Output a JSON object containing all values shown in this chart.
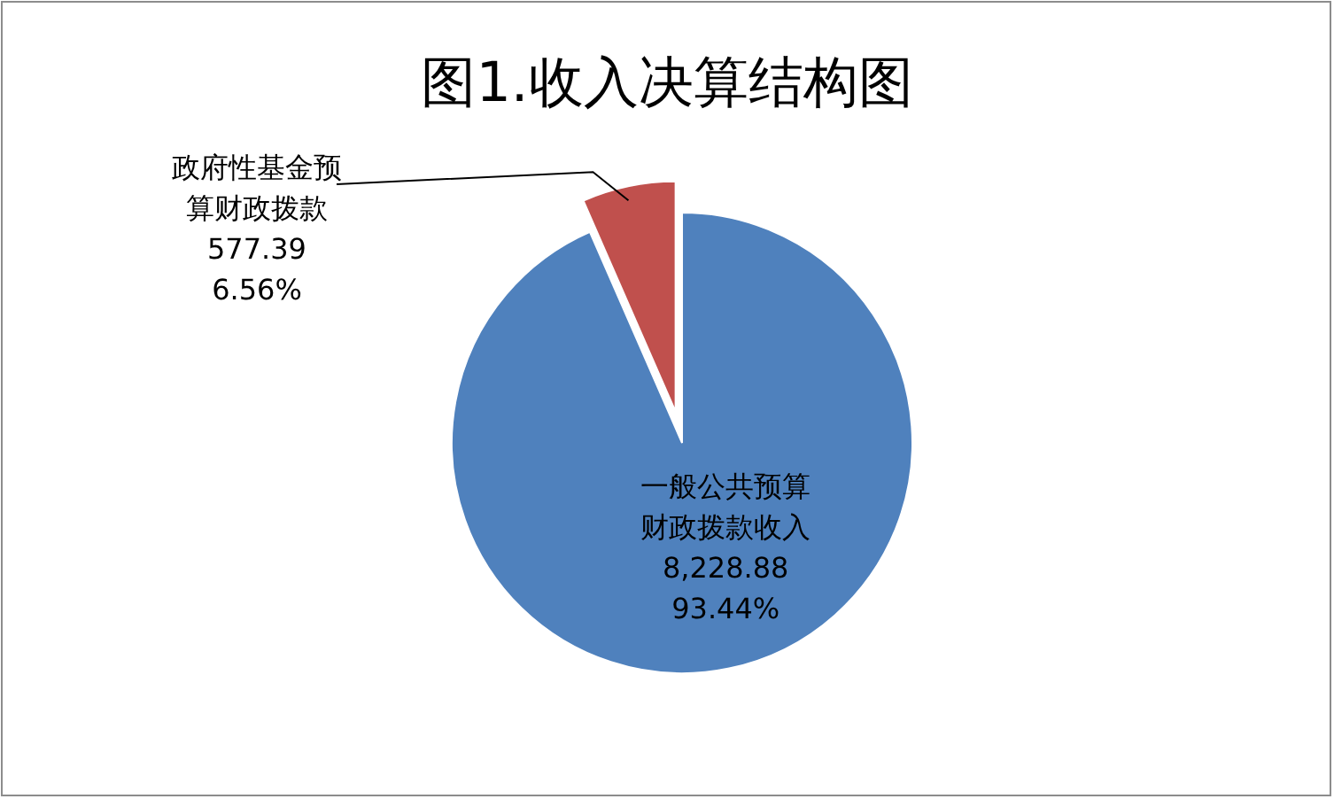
{
  "chart_data": {
    "type": "pie",
    "title": "图1.收入决算结构图",
    "categories": [
      "一般公共预算财政拨款收入",
      "政府性基金预算财政拨款"
    ],
    "values": [
      8228.88,
      577.39
    ],
    "colors": [
      "#4f81bd",
      "#c0504d"
    ],
    "value_labels": [
      "8,228.88",
      "577.39"
    ],
    "annotations": [
      "93.44%",
      "6.56%"
    ],
    "legend": false
  }
}
